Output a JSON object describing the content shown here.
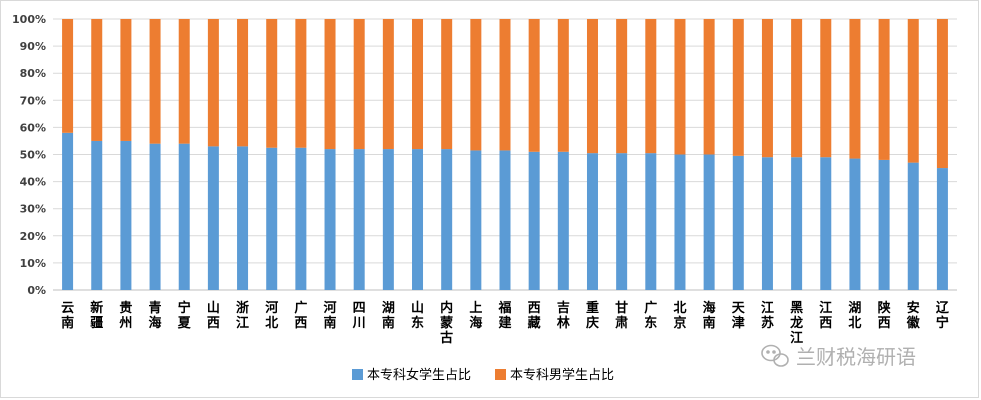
{
  "chart_data": {
    "type": "bar",
    "stacked": true,
    "categories": [
      "云南",
      "新疆",
      "贵州",
      "青海",
      "宁夏",
      "山西",
      "浙江",
      "河北",
      "广西",
      "河南",
      "四川",
      "湖南",
      "山东",
      "内蒙古",
      "上海",
      "福建",
      "西藏",
      "吉林",
      "重庆",
      "甘肃",
      "广东",
      "北京",
      "海南",
      "天津",
      "江苏",
      "黑龙江",
      "江西",
      "湖北",
      "陕西",
      "安徽",
      "辽宁"
    ],
    "series": [
      {
        "name": "本专科女学生占比",
        "color": "#5b9bd5",
        "values": [
          58,
          55,
          55,
          54,
          54,
          53,
          53,
          52.5,
          52.5,
          52,
          52,
          52,
          52,
          52,
          51.5,
          51.5,
          51,
          51,
          50.5,
          50.5,
          50.5,
          50,
          50,
          49.5,
          49,
          49,
          49,
          48.5,
          48,
          47,
          45
        ]
      },
      {
        "name": "本专科男学生占比",
        "color": "#ed7d31",
        "values": [
          42,
          45,
          45,
          46,
          46,
          47,
          47,
          47.5,
          47.5,
          48,
          48,
          48,
          48,
          48,
          48.5,
          48.5,
          49,
          49,
          49.5,
          49.5,
          49.5,
          50,
          50,
          50.5,
          51,
          51,
          51,
          51.5,
          52,
          53,
          55
        ]
      }
    ],
    "yticks": [
      "0%",
      "10%",
      "20%",
      "30%",
      "40%",
      "50%",
      "60%",
      "70%",
      "80%",
      "90%",
      "100%"
    ],
    "ylim": [
      0,
      100
    ],
    "grid": true,
    "legend": "bottom"
  },
  "watermark": {
    "text": "兰财税海研语",
    "icon": "wechat-icon",
    "color": "#b0b0b0"
  }
}
